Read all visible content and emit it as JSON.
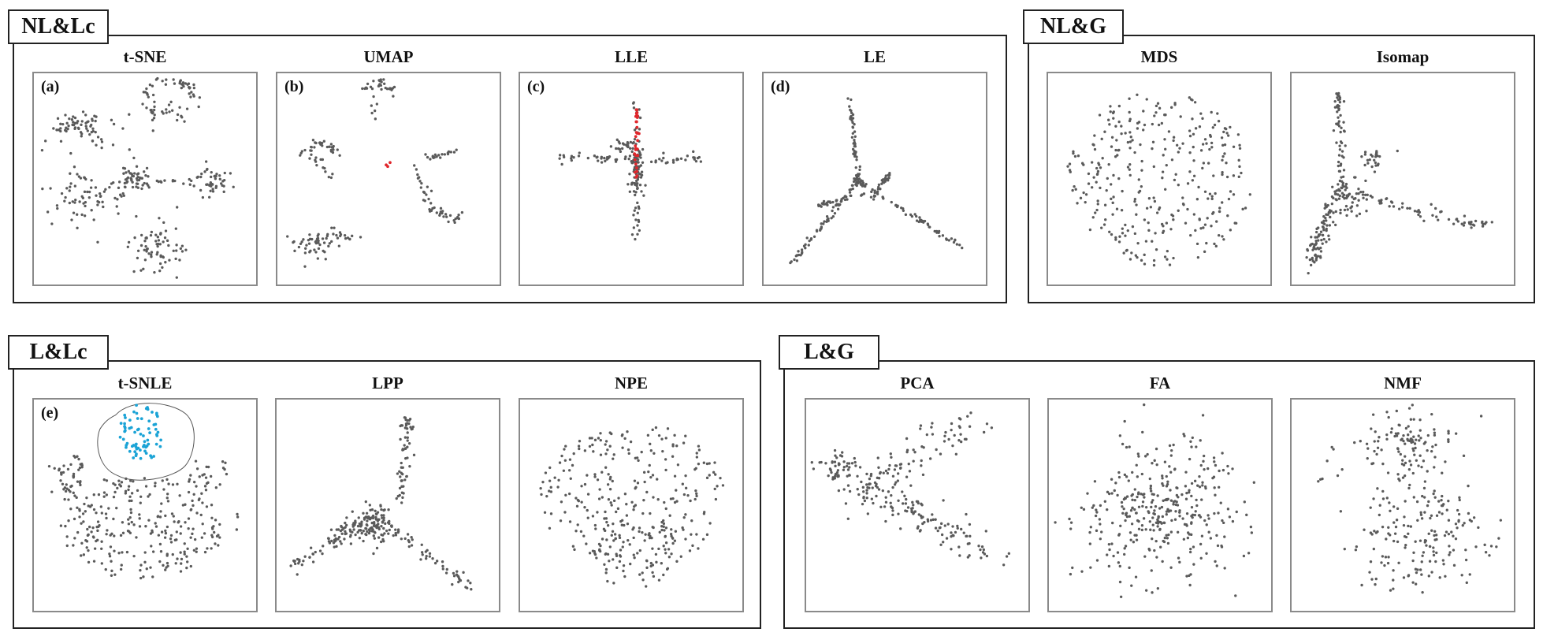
{
  "colors": {
    "point": "#5a5a5a",
    "highlight": "#e0262b",
    "selection": "#1aa3d6",
    "frame": "#222222",
    "panel_border": "#8a8a8a"
  },
  "groups": [
    {
      "id": "nl-lc",
      "label": "NL&Lc"
    },
    {
      "id": "nl-g",
      "label": "NL&G"
    },
    {
      "id": "l-lc",
      "label": "L&Lc"
    },
    {
      "id": "l-g",
      "label": "L&G"
    }
  ],
  "panels": [
    {
      "id": "tsne",
      "title": "t-SNE",
      "label": "(a)",
      "pattern": "tsne"
    },
    {
      "id": "umap",
      "title": "UMAP",
      "label": "(b)",
      "pattern": "umap"
    },
    {
      "id": "lle",
      "title": "LLE",
      "label": "(c)",
      "pattern": "lle"
    },
    {
      "id": "le",
      "title": "LE",
      "label": "(d)",
      "pattern": "le"
    },
    {
      "id": "mds",
      "title": "MDS",
      "label": "",
      "pattern": "mds"
    },
    {
      "id": "isomap",
      "title": "Isomap",
      "label": "",
      "pattern": "isomap"
    },
    {
      "id": "tsnle",
      "title": "t-SNLE",
      "label": "(e)",
      "pattern": "tsnle"
    },
    {
      "id": "lpp",
      "title": "LPP",
      "label": "",
      "pattern": "lpp"
    },
    {
      "id": "npe",
      "title": "NPE",
      "label": "",
      "pattern": "npe"
    },
    {
      "id": "pca",
      "title": "PCA",
      "label": "",
      "pattern": "pca"
    },
    {
      "id": "fa",
      "title": "FA",
      "label": "",
      "pattern": "fa"
    },
    {
      "id": "nmf",
      "title": "NMF",
      "label": "",
      "pattern": "nmf"
    }
  ]
}
